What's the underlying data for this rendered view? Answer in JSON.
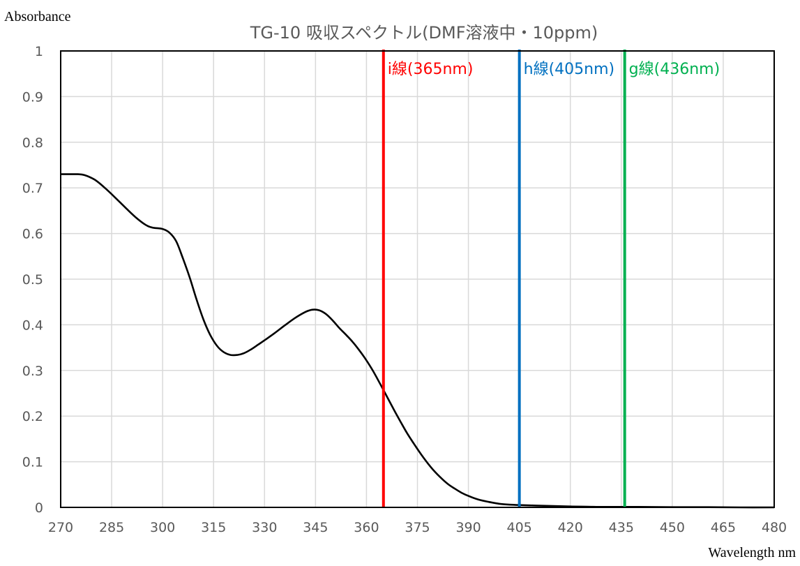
{
  "chart_data": {
    "type": "line",
    "title": "TG-10 吸収スペクトル(DMF溶液中・10ppm)",
    "xlabel": "Wavelength nm",
    "ylabel": "Absorbance",
    "xlim": [
      270,
      480
    ],
    "ylim": [
      0,
      1
    ],
    "xticks": [
      270,
      285,
      300,
      315,
      330,
      345,
      360,
      375,
      390,
      405,
      420,
      435,
      450,
      465,
      480
    ],
    "yticks": [
      0,
      0.1,
      0.2,
      0.3,
      0.4,
      0.5,
      0.6,
      0.7,
      0.8,
      0.9,
      1
    ],
    "xtick_labels": [
      "270",
      "285",
      "300",
      "315",
      "330",
      "345",
      "360",
      "375",
      "390",
      "405",
      "420",
      "435",
      "450",
      "465",
      "480"
    ],
    "ytick_labels": [
      "0",
      "0.1",
      "0.2",
      "0.3",
      "0.4",
      "0.5",
      "0.6",
      "0.7",
      "0.8",
      "0.9",
      "1"
    ],
    "grid": true,
    "series": [
      {
        "color": "#000000",
        "x": [
          270,
          272,
          275,
          277,
          280,
          283,
          286,
          289,
          292,
          295,
          297,
          300,
          302,
          304,
          306,
          308,
          310,
          312,
          314,
          316,
          318,
          320,
          322,
          324,
          326,
          328,
          330,
          333,
          336,
          339,
          342,
          344,
          346,
          348,
          350,
          352,
          354,
          356,
          358,
          360,
          362,
          364,
          366,
          368,
          370,
          372,
          374,
          376,
          378,
          380,
          382,
          384,
          386,
          388,
          390,
          393,
          396,
          399,
          402,
          405,
          410,
          415,
          420,
          425,
          430,
          435,
          440,
          450,
          460,
          470,
          480
        ],
        "y": [
          0.73,
          0.73,
          0.73,
          0.728,
          0.718,
          0.7,
          0.679,
          0.657,
          0.636,
          0.619,
          0.613,
          0.61,
          0.602,
          0.583,
          0.545,
          0.503,
          0.455,
          0.412,
          0.378,
          0.354,
          0.34,
          0.334,
          0.334,
          0.338,
          0.346,
          0.356,
          0.366,
          0.382,
          0.399,
          0.415,
          0.428,
          0.433,
          0.432,
          0.424,
          0.41,
          0.393,
          0.378,
          0.362,
          0.343,
          0.322,
          0.298,
          0.271,
          0.243,
          0.215,
          0.188,
          0.162,
          0.139,
          0.117,
          0.097,
          0.079,
          0.064,
          0.051,
          0.041,
          0.032,
          0.025,
          0.017,
          0.012,
          0.008,
          0.006,
          0.005,
          0.004,
          0.003,
          0.002,
          0.0015,
          0.001,
          0.001,
          0.001,
          0.0005,
          0.0005,
          0.0,
          0.0
        ]
      }
    ],
    "markers": [
      {
        "x": 365,
        "label": "i線(365nm)",
        "label_prefix": "i",
        "label_rest": "線(365nm)",
        "color": "#ff0000"
      },
      {
        "x": 405,
        "label": "h線(405nm)",
        "label_prefix": "h",
        "label_rest": "線(405nm)",
        "color": "#0070c0"
      },
      {
        "x": 436,
        "label": "g線(436nm)",
        "label_prefix": "g",
        "label_rest": "線(436nm)",
        "color": "#00b050"
      }
    ]
  }
}
